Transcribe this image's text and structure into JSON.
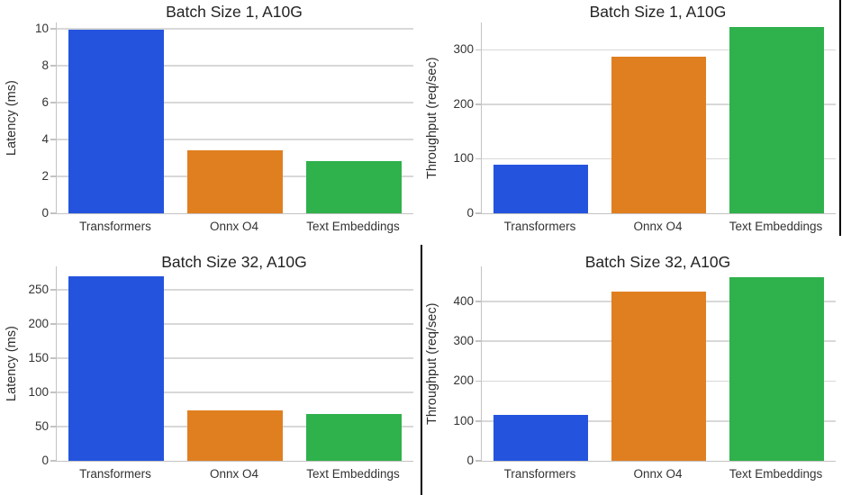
{
  "figure": {
    "background": "#ffffff",
    "grid_color": "#d8d8d8",
    "spine_color": "#c3c3c3",
    "title_color": "#232323",
    "tick_color": "#333333",
    "separator_color": "#000000"
  },
  "palette": {
    "series_colors": [
      "#2454de",
      "#e07f20",
      "#2fb14c"
    ]
  },
  "chart_data": [
    {
      "type": "bar",
      "title": "Batch Size 1, A10G",
      "xlabel": "",
      "ylabel": "Latency (ms)",
      "categories": [
        "Transformers",
        "Onnx O4",
        "Text Embeddings"
      ],
      "values": [
        9.95,
        3.4,
        2.85
      ],
      "yticks": [
        0,
        2,
        4,
        6,
        8,
        10
      ],
      "ylim": [
        0,
        10.35
      ],
      "grid": true,
      "legend": "none",
      "position": "top-left"
    },
    {
      "type": "bar",
      "title": "Batch Size 1, A10G",
      "xlabel": "",
      "ylabel": "Throughput (req/sec)",
      "categories": [
        "Transformers",
        "Onnx O4",
        "Text Embeddings"
      ],
      "values": [
        90,
        288,
        342
      ],
      "yticks": [
        0,
        100,
        200,
        300
      ],
      "ylim": [
        0,
        350
      ],
      "grid": true,
      "legend": "none",
      "position": "top-right"
    },
    {
      "type": "bar",
      "title": "Batch Size 32, A10G",
      "xlabel": "",
      "ylabel": "Latency (ms)",
      "categories": [
        "Transformers",
        "Onnx O4",
        "Text Embeddings"
      ],
      "values": [
        270,
        74,
        68
      ],
      "yticks": [
        0,
        50,
        100,
        150,
        200,
        250
      ],
      "ylim": [
        0,
        284
      ],
      "grid": true,
      "legend": "none",
      "position": "bottom-left"
    },
    {
      "type": "bar",
      "title": "Batch Size 32, A10G",
      "xlabel": "",
      "ylabel": "Throughput (req/sec)",
      "categories": [
        "Transformers",
        "Onnx O4",
        "Text Embeddings"
      ],
      "values": [
        115,
        425,
        461
      ],
      "yticks": [
        0,
        100,
        200,
        300,
        400
      ],
      "ylim": [
        0,
        488
      ],
      "grid": true,
      "legend": "none",
      "position": "bottom-right"
    }
  ]
}
